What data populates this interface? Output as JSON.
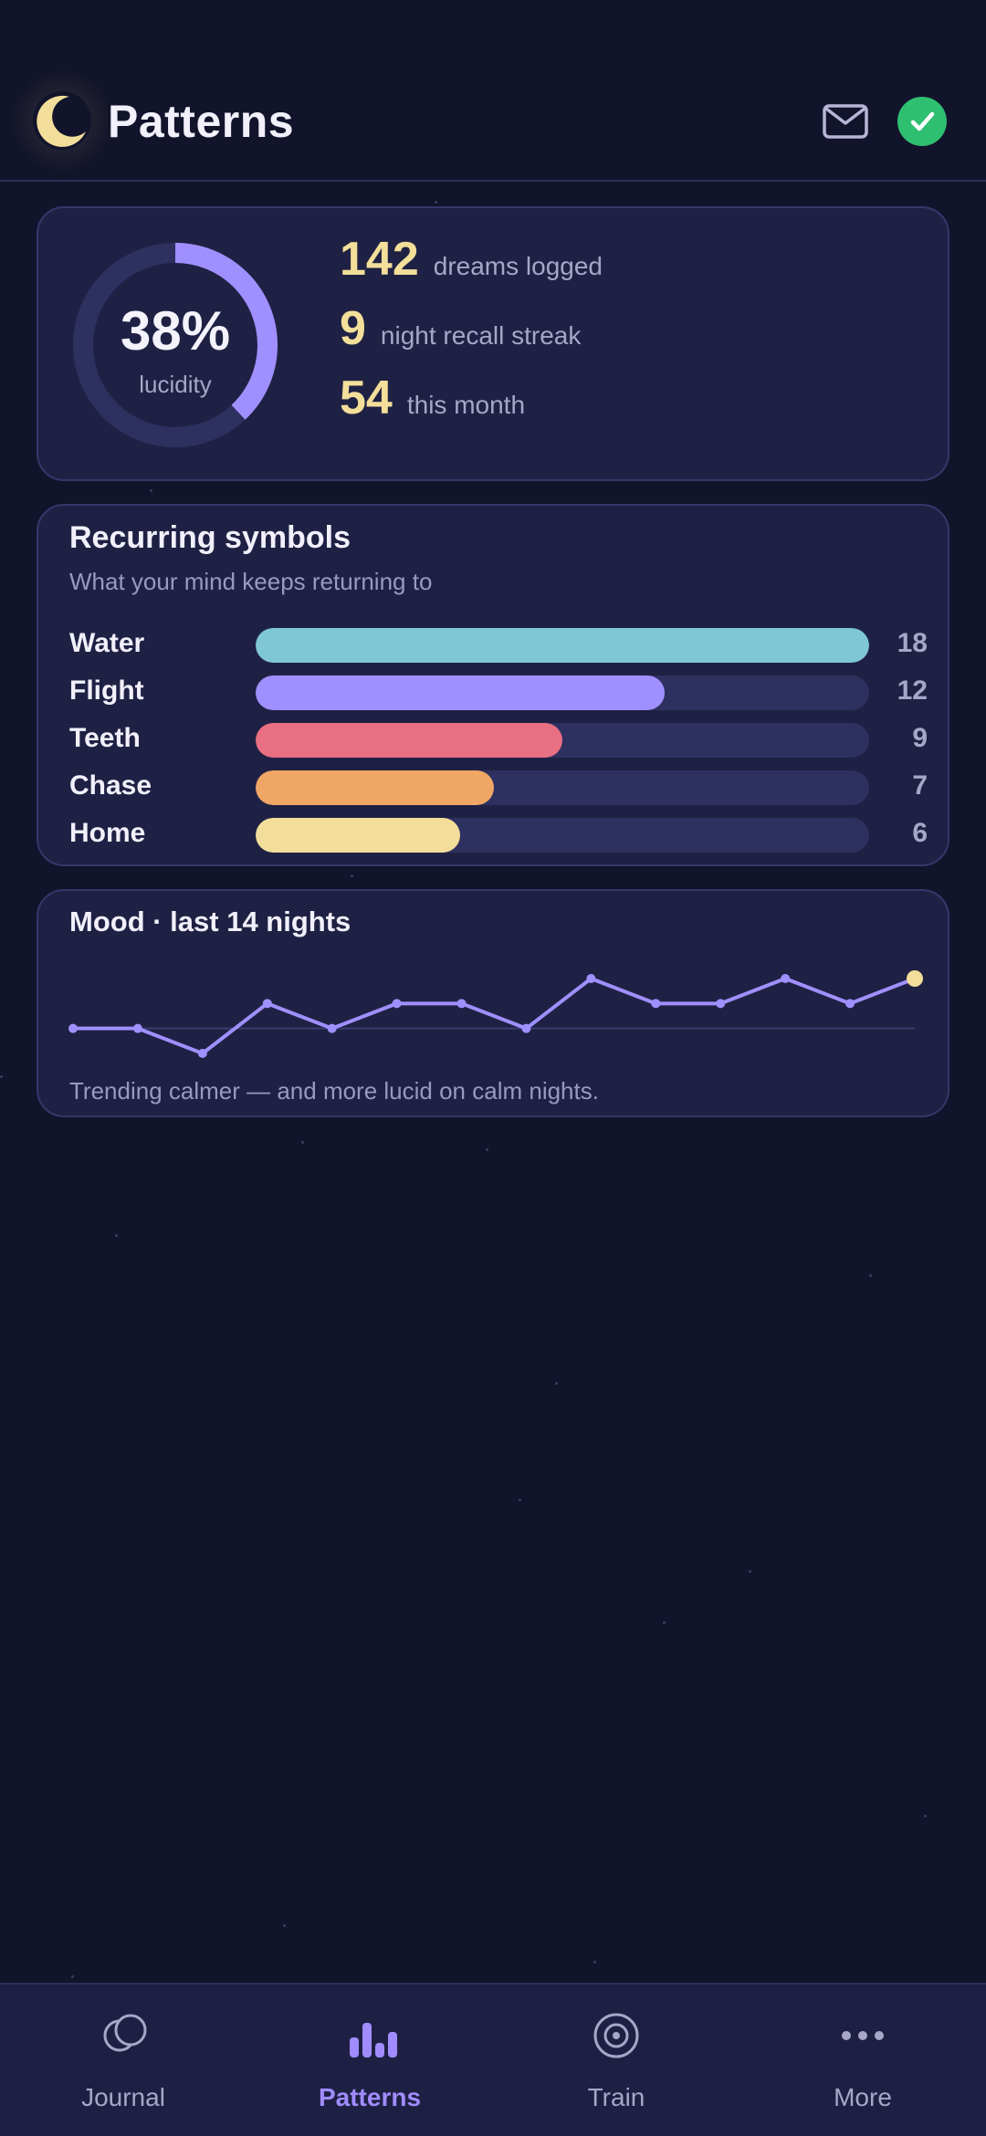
{
  "header": {
    "title": "Patterns",
    "icons": [
      "moon-icon",
      "mail-icon",
      "check-icon"
    ]
  },
  "stats": {
    "lucidity_percent": "38%",
    "lucidity_label": "lucidity",
    "lucidity_fraction": 0.38,
    "rows": [
      {
        "value": "142",
        "label": "dreams logged"
      },
      {
        "value": "9",
        "label": "night recall streak"
      },
      {
        "value": "54",
        "label": "this month"
      }
    ]
  },
  "symbols": {
    "title": "Recurring symbols",
    "subtitle": "What your mind keeps returning to",
    "max": 18,
    "items": [
      {
        "name": "Water",
        "count": "18",
        "value": 18,
        "color": "#7fc8d3"
      },
      {
        "name": "Flight",
        "count": "12",
        "value": 12,
        "color": "#a090ff"
      },
      {
        "name": "Teeth",
        "count": "9",
        "value": 9,
        "color": "#e96f82"
      },
      {
        "name": "Chase",
        "count": "7",
        "value": 7,
        "color": "#f0a766"
      },
      {
        "name": "Home",
        "count": "6",
        "value": 6,
        "color": "#f2de9a"
      }
    ]
  },
  "mood": {
    "title": "Mood · last 14 nights",
    "note": "Trending calmer — and more lucid on calm nights."
  },
  "chart_data": {
    "type": "line",
    "title": "Mood · last 14 nights",
    "x": [
      1,
      2,
      3,
      4,
      5,
      6,
      7,
      8,
      9,
      10,
      11,
      12,
      13,
      14
    ],
    "series": [
      {
        "values": [
          0,
          0,
          -1,
          1,
          0,
          1,
          1,
          0,
          2,
          1,
          1,
          2,
          1,
          2
        ]
      }
    ],
    "ylim": [
      -1,
      2
    ],
    "grid": false,
    "baseline": 0,
    "line_color": "#a090ff",
    "last_point_color": "#f2de9a"
  },
  "nav": {
    "items": [
      {
        "label": "Journal",
        "icon": "journal-icon",
        "active": false
      },
      {
        "label": "Patterns",
        "icon": "patterns-icon",
        "active": true
      },
      {
        "label": "Train",
        "icon": "target-icon",
        "active": false
      },
      {
        "label": "More",
        "icon": "more-icon",
        "active": false
      }
    ]
  },
  "colors": {
    "background": "#12142b",
    "card": "#1f2144",
    "accent": "#a090ff",
    "highlight": "#f3df9a",
    "success": "#2fbf71"
  }
}
